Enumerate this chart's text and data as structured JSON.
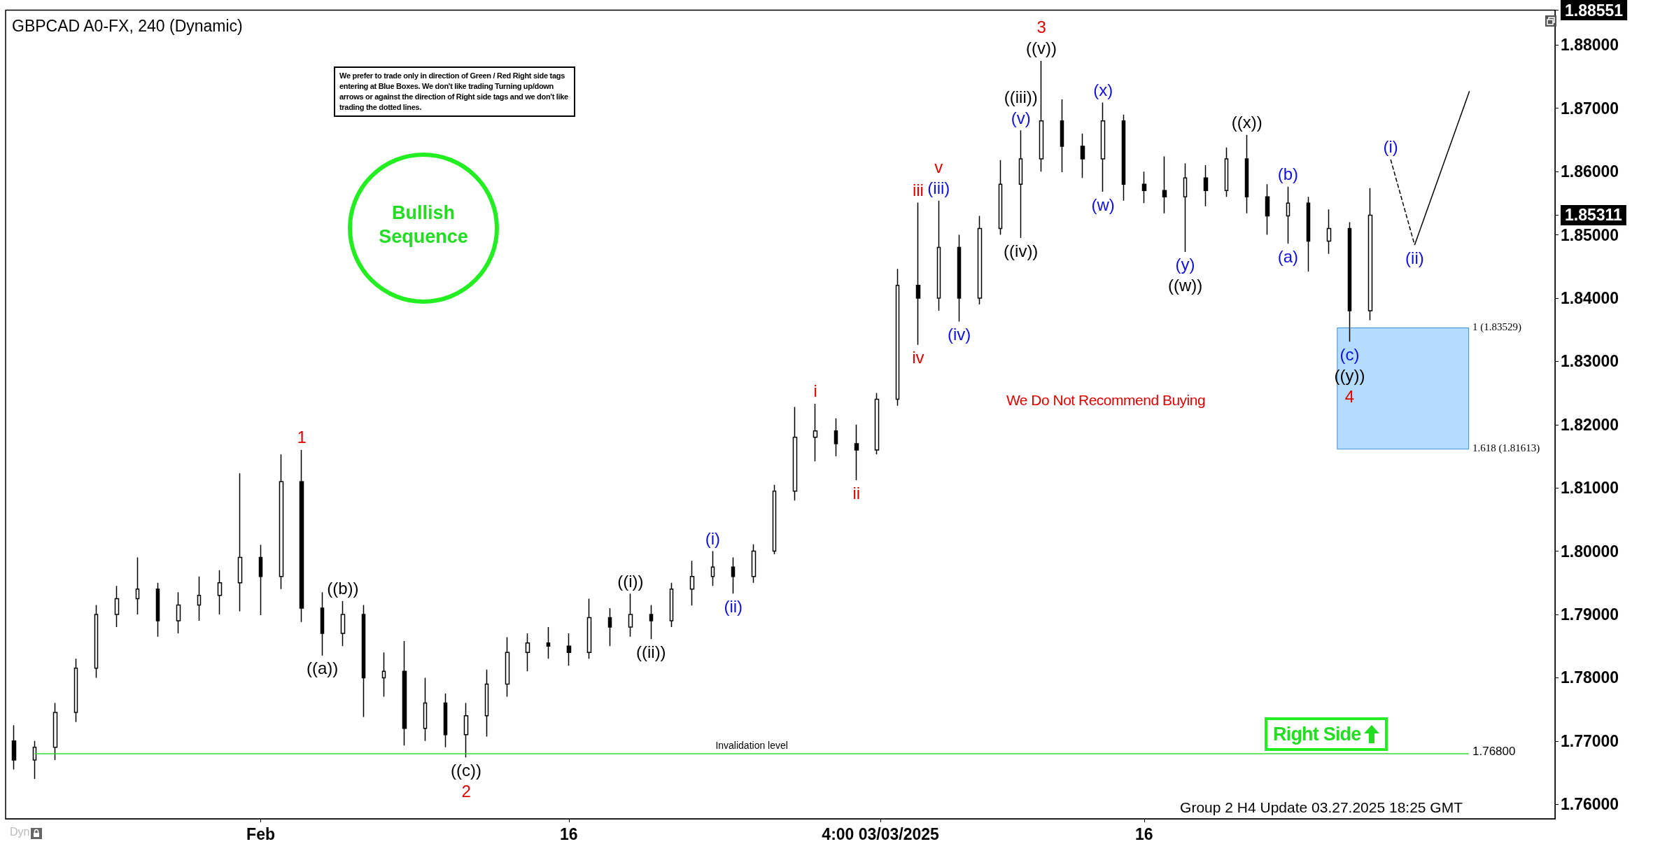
{
  "chart_data": {
    "type": "candlestick",
    "title": "GBPCAD A0-FX, 240 (Dynamic)",
    "color": "#000000",
    "x": [
      "2025-01-20",
      "2025-01-21",
      "2025-01-22",
      "2025-01-23",
      "2025-01-24",
      "2025-01-25",
      "2025-01-26",
      "2025-01-27",
      "2025-01-28",
      "2025-01-29",
      "2025-01-30",
      "2025-01-31",
      "2025-02-01",
      "2025-02-02",
      "2025-02-03",
      "2025-02-04",
      "2025-02-05",
      "2025-02-06",
      "2025-02-07",
      "2025-02-08",
      "2025-02-09",
      "2025-02-10",
      "2025-02-11",
      "2025-02-12",
      "2025-02-13",
      "2025-02-14",
      "2025-02-15",
      "2025-02-16",
      "2025-02-17",
      "2025-02-18",
      "2025-02-19",
      "2025-02-20",
      "2025-02-21",
      "2025-02-22",
      "2025-02-23",
      "2025-02-24",
      "2025-02-25",
      "2025-02-26",
      "2025-02-27",
      "2025-02-28",
      "2025-03-01",
      "2025-03-02",
      "2025-03-03",
      "2025-03-04",
      "2025-03-05",
      "2025-03-06",
      "2025-03-07",
      "2025-03-08",
      "2025-03-09",
      "2025-03-10",
      "2025-03-11",
      "2025-03-12",
      "2025-03-13",
      "2025-03-14",
      "2025-03-15",
      "2025-03-16",
      "2025-03-17",
      "2025-03-18",
      "2025-03-19",
      "2025-03-20",
      "2025-03-21",
      "2025-03-22",
      "2025-03-23",
      "2025-03-24",
      "2025-03-25",
      "2025-03-26",
      "2025-03-27"
    ],
    "ohlc": [
      [
        1.77,
        1.7725,
        1.7655,
        1.767
      ],
      [
        1.767,
        1.77,
        1.764,
        1.769
      ],
      [
        1.769,
        1.776,
        1.767,
        1.7745
      ],
      [
        1.7745,
        1.783,
        1.773,
        1.7815
      ],
      [
        1.7815,
        1.7915,
        1.78,
        1.79
      ],
      [
        1.79,
        1.7945,
        1.788,
        1.7925
      ],
      [
        1.7925,
        1.799,
        1.79,
        1.794
      ],
      [
        1.794,
        1.795,
        1.7865,
        1.789
      ],
      [
        1.789,
        1.7935,
        1.787,
        1.7915
      ],
      [
        1.7915,
        1.796,
        1.789,
        1.793
      ],
      [
        1.793,
        1.797,
        1.79,
        1.795
      ],
      [
        1.795,
        1.8123,
        1.7905,
        1.799
      ],
      [
        1.799,
        1.801,
        1.7899,
        1.796
      ],
      [
        1.796,
        1.8153,
        1.794,
        1.811
      ],
      [
        1.811,
        1.816,
        1.7888,
        1.791
      ],
      [
        1.791,
        1.7935,
        1.7835,
        1.787
      ],
      [
        1.787,
        1.7921,
        1.785,
        1.79
      ],
      [
        1.79,
        1.7915,
        1.7738,
        1.78
      ],
      [
        1.78,
        1.784,
        1.777,
        1.781
      ],
      [
        1.781,
        1.7858,
        1.7693,
        1.772
      ],
      [
        1.772,
        1.78,
        1.77,
        1.776
      ],
      [
        1.776,
        1.7775,
        1.769,
        1.771
      ],
      [
        1.771,
        1.776,
        1.7674,
        1.774
      ],
      [
        1.774,
        1.7813,
        1.7707,
        1.779
      ],
      [
        1.779,
        1.7864,
        1.777,
        1.784
      ],
      [
        1.784,
        1.787,
        1.781,
        1.7855
      ],
      [
        1.7855,
        1.788,
        1.783,
        1.785
      ],
      [
        1.785,
        1.787,
        1.7819,
        1.784
      ],
      [
        1.784,
        1.7925,
        1.783,
        1.7895
      ],
      [
        1.7895,
        1.791,
        1.785,
        1.788
      ],
      [
        1.788,
        1.7933,
        1.7865,
        1.79
      ],
      [
        1.79,
        1.7915,
        1.7861,
        1.789
      ],
      [
        1.789,
        1.795,
        1.788,
        1.794
      ],
      [
        1.794,
        1.7985,
        1.7914,
        1.796
      ],
      [
        1.796,
        1.8,
        1.7945,
        1.7975
      ],
      [
        1.7975,
        1.799,
        1.7933,
        1.796
      ],
      [
        1.796,
        1.8011,
        1.795,
        1.8
      ],
      [
        1.8,
        1.8105,
        1.7995,
        1.8095
      ],
      [
        1.8095,
        1.8228,
        1.808,
        1.818
      ],
      [
        1.818,
        1.8233,
        1.8142,
        1.819
      ],
      [
        1.819,
        1.821,
        1.815,
        1.817
      ],
      [
        1.817,
        1.82,
        1.8112,
        1.816
      ],
      [
        1.816,
        1.825,
        1.8153,
        1.824
      ],
      [
        1.824,
        1.8446,
        1.823,
        1.842
      ],
      [
        1.842,
        1.8551,
        1.8326,
        1.84
      ],
      [
        1.84,
        1.8554,
        1.838,
        1.848
      ],
      [
        1.848,
        1.85,
        1.8363,
        1.84
      ],
      [
        1.84,
        1.853,
        1.839,
        1.851
      ],
      [
        1.851,
        1.8618,
        1.85,
        1.858
      ],
      [
        1.858,
        1.8665,
        1.8495,
        1.862
      ],
      [
        1.862,
        1.8775,
        1.86,
        1.868
      ],
      [
        1.868,
        1.8714,
        1.8599,
        1.864
      ],
      [
        1.864,
        1.866,
        1.859,
        1.862
      ],
      [
        1.862,
        1.8709,
        1.8568,
        1.868
      ],
      [
        1.868,
        1.869,
        1.8554,
        1.858
      ],
      [
        1.858,
        1.86,
        1.855,
        1.857
      ],
      [
        1.857,
        1.8624,
        1.8534,
        1.856
      ],
      [
        1.856,
        1.8613,
        1.8473,
        1.859
      ],
      [
        1.859,
        1.861,
        1.8545,
        1.857
      ],
      [
        1.857,
        1.8638,
        1.856,
        1.862
      ],
      [
        1.862,
        1.8658,
        1.8534,
        1.856
      ],
      [
        1.856,
        1.858,
        1.85,
        1.853
      ],
      [
        1.853,
        1.8576,
        1.8486,
        1.855
      ],
      [
        1.855,
        1.856,
        1.8442,
        1.849
      ],
      [
        1.849,
        1.854,
        1.847,
        1.851
      ],
      [
        1.851,
        1.852,
        1.8331,
        1.838
      ],
      [
        1.838,
        1.8574,
        1.8365,
        1.85311
      ]
    ],
    "series": [
      {
        "type": "line",
        "color": "#000000",
        "line_style": "dashed",
        "x": [
          "2025-03-28T00:00",
          "2025-03-29T04:00"
        ],
        "values": [
          1.8619,
          1.8484
        ]
      },
      {
        "type": "line",
        "color": "#000000",
        "line_style": "solid",
        "x": [
          "2025-03-29T04:00",
          "2025-03-31T20:00"
        ],
        "values": [
          1.8484,
          1.8727
        ]
      }
    ],
    "bands": [
      {
        "axis": "y",
        "from": 1.81613,
        "to": 1.83529,
        "color": "#b3dcff"
      }
    ],
    "ref_lines": [
      {
        "axis": "y",
        "value": 1.768,
        "label": "Invalidation level",
        "color": "#33dd33"
      }
    ],
    "annotations": [
      {
        "text": "(i)",
        "x": "2025-02-23",
        "y": 1.8
      },
      {
        "text": "(ii)",
        "x": "2025-02-24",
        "y": 1.7933
      },
      {
        "text": "(iii)",
        "x": "2025-03-06",
        "y": 1.8554
      },
      {
        "text": "(iv)",
        "x": "2025-03-07",
        "y": 1.8363
      },
      {
        "text": "(v)",
        "x": "2025-03-10",
        "y": 1.8665
      },
      {
        "text": "(w)",
        "x": "2025-03-14",
        "y": 1.8568
      },
      {
        "text": "(x)",
        "x": "2025-03-14",
        "y": 1.8709
      },
      {
        "text": "(y)",
        "x": "2025-03-18",
        "y": 1.8473
      },
      {
        "text": "(a)",
        "x": "2025-03-23",
        "y": 1.8486
      },
      {
        "text": "(b)",
        "x": "2025-03-23",
        "y": 1.8576
      },
      {
        "text": "(c)",
        "x": "2025-03-26",
        "y": 1.8331
      },
      {
        "text": "(i)",
        "x": "2025-03-28T00:00",
        "y": 1.8619
      },
      {
        "text": "(ii)",
        "x": "2025-03-29T04:00",
        "y": 1.8484
      },
      {
        "text": "((a))",
        "x": "2025-02-04",
        "y": 1.7835
      },
      {
        "text": "((b))",
        "x": "2025-02-05",
        "y": 1.7921
      },
      {
        "text": "((c))",
        "x": "2025-02-11",
        "y": 1.7674
      },
      {
        "text": "((i))",
        "x": "2025-02-19",
        "y": 1.7933
      },
      {
        "text": "((ii))",
        "x": "2025-02-20",
        "y": 1.7861
      },
      {
        "text": "((iii))",
        "x": "2025-03-10",
        "y": 1.8665
      },
      {
        "text": "((iv))",
        "x": "2025-03-10",
        "y": 1.8495
      },
      {
        "text": "((v))",
        "x": "2025-03-11",
        "y": 1.8775
      },
      {
        "text": "((w))",
        "x": "2025-03-18",
        "y": 1.8473
      },
      {
        "text": "((x))",
        "x": "2025-03-21",
        "y": 1.8658
      },
      {
        "text": "((y))",
        "x": "2025-03-26",
        "y": 1.8331
      },
      {
        "text": "1",
        "x": "2025-02-03",
        "y": 1.816
      },
      {
        "text": "2",
        "x": "2025-02-11",
        "y": 1.7674
      },
      {
        "text": "i",
        "x": "2025-02-28",
        "y": 1.8233
      },
      {
        "text": "ii",
        "x": "2025-03-02",
        "y": 1.8112
      },
      {
        "text": "iii",
        "x": "2025-03-05",
        "y": 1.8551
      },
      {
        "text": "iv",
        "x": "2025-03-05",
        "y": 1.8326
      },
      {
        "text": "v",
        "x": "2025-03-06",
        "y": 1.8554
      },
      {
        "text": "3",
        "x": "2025-03-11",
        "y": 1.8775
      },
      {
        "text": "4",
        "x": "2025-03-26",
        "y": 1.8331
      },
      "We prefer to trade only in direction of Green / Red Right side tags entering at Blue Boxes. We don't like trading Turning up/down arrows or against the direction of Right side tags and we don't like trading the dotted lines.",
      "Bullish Sequence",
      "We Do Not Recommend Buying",
      "Right Side",
      "1 (1.83529)",
      "1.618 (1.81613)",
      "1.76800",
      "Group 2 H4 Update 03.27.2025 18:25 GMT",
      "Dyn"
    ],
    "xlim": [
      "2025-01-19T14:00",
      "2025-04-05T00:00"
    ],
    "xticks": [
      {
        "value": "2025-02-01",
        "label": "Feb"
      },
      {
        "value": "2025-02-16",
        "label": "16"
      },
      {
        "value": "2025-03-03T04:00",
        "label": "4:00 03/03/2025"
      },
      {
        "value": "2025-03-16",
        "label": "16"
      }
    ],
    "ylim": [
      1.7577,
      1.88551
    ],
    "yticks": [
      {
        "value": 1.76,
        "label": "1.76000"
      },
      {
        "value": 1.77,
        "label": "1.77000"
      },
      {
        "value": 1.78,
        "label": "1.78000"
      },
      {
        "value": 1.79,
        "label": "1.79000"
      },
      {
        "value": 1.8,
        "label": "1.80000"
      },
      {
        "value": 1.81,
        "label": "1.81000"
      },
      {
        "value": 1.82,
        "label": "1.82000"
      },
      {
        "value": 1.83,
        "label": "1.83000"
      },
      {
        "value": 1.84,
        "label": "1.84000"
      },
      {
        "value": 1.85,
        "label": "1.85000"
      },
      {
        "value": 1.86,
        "label": "1.86000"
      },
      {
        "value": 1.87,
        "label": "1.87000"
      },
      {
        "value": 1.88,
        "label": "1.88000"
      },
      {
        "value": 1.85311,
        "label": "1.85311"
      },
      {
        "value": 1.88551,
        "label": "1.88551"
      }
    ],
    "grid": false
  }
}
